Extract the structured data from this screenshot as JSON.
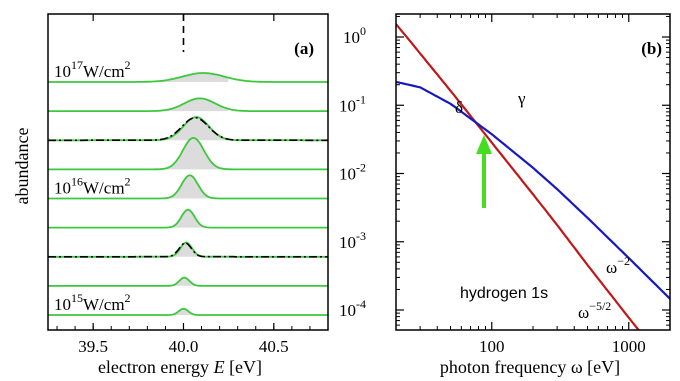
{
  "colors": {
    "green": "#3cc83c",
    "gray_fill": "#dcdcdc",
    "red": "#c01818",
    "blue": "#1818c0",
    "arrow": "#44dd22",
    "axis": "#000000"
  },
  "chart_data": [
    {
      "type": "line",
      "panel": "(a)",
      "xlabel_prefix": "electron energy ",
      "xlabel_var": "E",
      "xlabel_suffix": " [eV]",
      "ylabel": "abundance",
      "xlim": [
        39.25,
        40.8
      ],
      "xticks": [
        39.5,
        40.0,
        40.5
      ],
      "xtick_labels": [
        "39.5",
        "40.0",
        "40.5"
      ],
      "vline_x": 40.0,
      "intensity_labels": [
        {
          "mantissa": "10",
          "exponent": "17",
          "unit": "W/cm",
          "unit_exp": "2",
          "row": 0
        },
        {
          "mantissa": "10",
          "exponent": "16",
          "unit": "W/cm",
          "unit_exp": "2",
          "row": 4
        },
        {
          "mantissa": "10",
          "exponent": "15",
          "unit": "W/cm",
          "unit_exp": "2",
          "row": 8
        }
      ],
      "traces": [
        {
          "center": 40.11,
          "width": 0.115,
          "height": 0.6
        },
        {
          "center": 40.09,
          "width": 0.085,
          "height": 0.85
        },
        {
          "center": 40.07,
          "width": 0.07,
          "height": 1.55,
          "dashdot": true
        },
        {
          "center": 40.055,
          "width": 0.058,
          "height": 2.1
        },
        {
          "center": 40.035,
          "width": 0.045,
          "height": 1.55
        },
        {
          "center": 40.025,
          "width": 0.036,
          "height": 1.2
        },
        {
          "center": 40.015,
          "width": 0.032,
          "height": 0.95,
          "dashdot": true
        },
        {
          "center": 40.005,
          "width": 0.028,
          "height": 0.55
        },
        {
          "center": 40.0,
          "width": 0.026,
          "height": 0.42
        }
      ]
    },
    {
      "type": "line",
      "panel": "(b)",
      "xscale": "log",
      "yscale": "log",
      "xlabel": "photon frequency ω [eV]",
      "xlim": [
        20,
        2000
      ],
      "ylim": [
        5e-05,
        1.6
      ],
      "xticks": [
        100,
        1000
      ],
      "xtick_labels": [
        "100",
        "1000"
      ],
      "yticks": [
        {
          "mantissa": "10",
          "exponent": "0"
        },
        {
          "mantissa": "10",
          "exponent": "-1"
        },
        {
          "mantissa": "10",
          "exponent": "-2"
        },
        {
          "mantissa": "10",
          "exponent": "-3"
        },
        {
          "mantissa": "10",
          "exponent": "-4"
        }
      ],
      "annotation": "hydrogen 1s",
      "series": [
        {
          "name": "γ",
          "color_key": "red",
          "x": [
            20,
            30,
            50,
            100,
            200,
            300,
            500,
            1000,
            2000
          ],
          "y": [
            1.55,
            0.574,
            0.163,
            0.0284,
            0.00496,
            0.00176,
            0.000456,
            7.72e-05,
            1.34e-05
          ]
        },
        {
          "name": "δ",
          "color_key": "blue",
          "x": [
            20,
            30,
            50,
            100,
            200,
            300,
            500,
            1000,
            2000
          ],
          "y": [
            0.22,
            0.183,
            0.105,
            0.0377,
            0.0121,
            0.0059,
            0.00224,
            0.000578,
            0.000146
          ]
        }
      ],
      "slope_labels": [
        {
          "base": "ω",
          "exponent": "−2"
        },
        {
          "base": "ω",
          "exponent": "−5/2"
        }
      ]
    }
  ]
}
